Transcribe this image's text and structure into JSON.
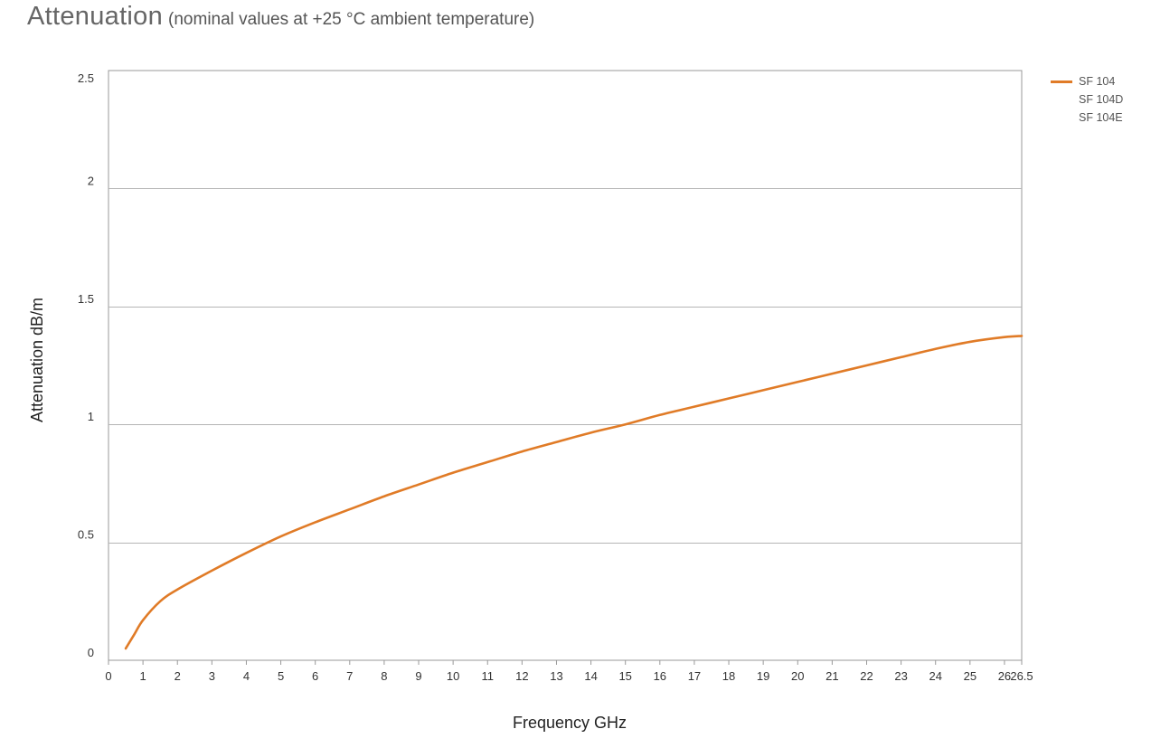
{
  "title": {
    "main": "Attenuation",
    "sub": "(nominal values at +25 °C ambient temperature)"
  },
  "chart_data": {
    "type": "line",
    "xlabel": "Frequency GHz",
    "ylabel": "Attenuation dB/m",
    "xlim": [
      0,
      26.5
    ],
    "ylim": [
      0,
      2.5
    ],
    "x_ticks": [
      "0",
      "1",
      "2",
      "3",
      "4",
      "5",
      "6",
      "7",
      "8",
      "9",
      "10",
      "11",
      "12",
      "13",
      "14",
      "15",
      "16",
      "17",
      "18",
      "19",
      "20",
      "21",
      "22",
      "23",
      "24",
      "25",
      "26",
      "26.5"
    ],
    "y_ticks": [
      "0",
      "0.5",
      "1",
      "1.5",
      "2",
      "2.5"
    ],
    "grid": "horizontal",
    "legend_position": "top-right",
    "series": [
      {
        "name": "SF 104",
        "color": "#e07b27",
        "x": [
          0.5,
          0.75,
          1,
          1.5,
          2,
          3,
          4,
          5,
          6,
          7,
          8,
          9,
          10,
          11,
          12,
          13,
          14,
          15,
          16,
          17,
          18,
          19,
          20,
          21,
          22,
          23,
          24,
          25,
          26,
          26.5
        ],
        "y": [
          0.05,
          0.11,
          0.17,
          0.25,
          0.3,
          0.38,
          0.455,
          0.525,
          0.585,
          0.64,
          0.695,
          0.745,
          0.795,
          0.84,
          0.885,
          0.925,
          0.965,
          1.0,
          1.04,
          1.075,
          1.11,
          1.145,
          1.18,
          1.215,
          1.25,
          1.285,
          1.32,
          1.35,
          1.37,
          1.375
        ]
      },
      {
        "name": "SF 104D",
        "color": "",
        "x": [],
        "y": []
      },
      {
        "name": "SF 104E",
        "color": "",
        "x": [],
        "y": []
      }
    ]
  }
}
